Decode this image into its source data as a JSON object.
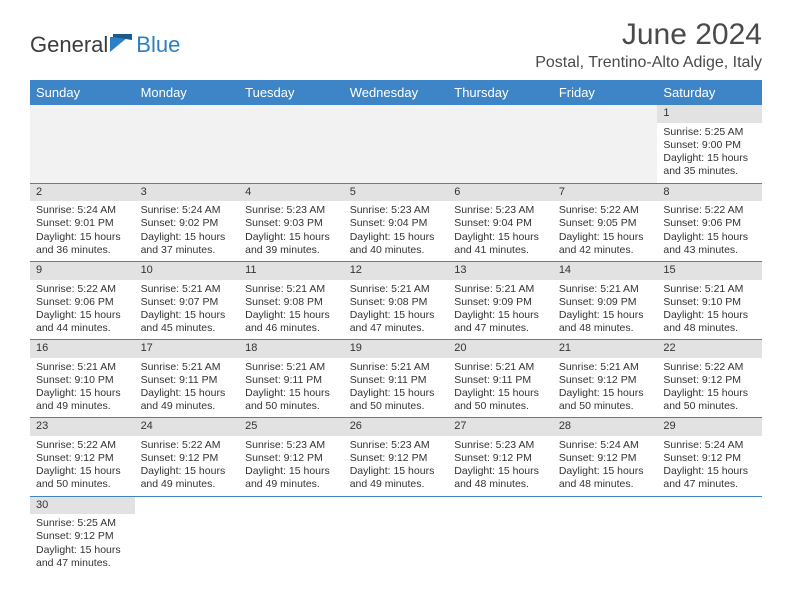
{
  "brand": {
    "part1": "General",
    "part2": "Blue"
  },
  "title": "June 2024",
  "location": "Postal, Trentino-Alto Adige, Italy",
  "columns": [
    "Sunday",
    "Monday",
    "Tuesday",
    "Wednesday",
    "Thursday",
    "Friday",
    "Saturday"
  ],
  "colors": {
    "header_bg": "#3d85c6",
    "header_text": "#ffffff",
    "daynum_bg": "#e2e2e2",
    "border": "#3d85c6",
    "empty_bg": "#f2f2f2",
    "text": "#333333",
    "brand_blue": "#2b7fc4",
    "brand_gray": "#3d3d3d"
  },
  "weeks": [
    [
      null,
      null,
      null,
      null,
      null,
      null,
      {
        "n": "1",
        "sr": "Sunrise: 5:25 AM",
        "ss": "Sunset: 9:00 PM",
        "d1": "Daylight: 15 hours",
        "d2": "and 35 minutes."
      }
    ],
    [
      {
        "n": "2",
        "sr": "Sunrise: 5:24 AM",
        "ss": "Sunset: 9:01 PM",
        "d1": "Daylight: 15 hours",
        "d2": "and 36 minutes."
      },
      {
        "n": "3",
        "sr": "Sunrise: 5:24 AM",
        "ss": "Sunset: 9:02 PM",
        "d1": "Daylight: 15 hours",
        "d2": "and 37 minutes."
      },
      {
        "n": "4",
        "sr": "Sunrise: 5:23 AM",
        "ss": "Sunset: 9:03 PM",
        "d1": "Daylight: 15 hours",
        "d2": "and 39 minutes."
      },
      {
        "n": "5",
        "sr": "Sunrise: 5:23 AM",
        "ss": "Sunset: 9:04 PM",
        "d1": "Daylight: 15 hours",
        "d2": "and 40 minutes."
      },
      {
        "n": "6",
        "sr": "Sunrise: 5:23 AM",
        "ss": "Sunset: 9:04 PM",
        "d1": "Daylight: 15 hours",
        "d2": "and 41 minutes."
      },
      {
        "n": "7",
        "sr": "Sunrise: 5:22 AM",
        "ss": "Sunset: 9:05 PM",
        "d1": "Daylight: 15 hours",
        "d2": "and 42 minutes."
      },
      {
        "n": "8",
        "sr": "Sunrise: 5:22 AM",
        "ss": "Sunset: 9:06 PM",
        "d1": "Daylight: 15 hours",
        "d2": "and 43 minutes."
      }
    ],
    [
      {
        "n": "9",
        "sr": "Sunrise: 5:22 AM",
        "ss": "Sunset: 9:06 PM",
        "d1": "Daylight: 15 hours",
        "d2": "and 44 minutes."
      },
      {
        "n": "10",
        "sr": "Sunrise: 5:21 AM",
        "ss": "Sunset: 9:07 PM",
        "d1": "Daylight: 15 hours",
        "d2": "and 45 minutes."
      },
      {
        "n": "11",
        "sr": "Sunrise: 5:21 AM",
        "ss": "Sunset: 9:08 PM",
        "d1": "Daylight: 15 hours",
        "d2": "and 46 minutes."
      },
      {
        "n": "12",
        "sr": "Sunrise: 5:21 AM",
        "ss": "Sunset: 9:08 PM",
        "d1": "Daylight: 15 hours",
        "d2": "and 47 minutes."
      },
      {
        "n": "13",
        "sr": "Sunrise: 5:21 AM",
        "ss": "Sunset: 9:09 PM",
        "d1": "Daylight: 15 hours",
        "d2": "and 47 minutes."
      },
      {
        "n": "14",
        "sr": "Sunrise: 5:21 AM",
        "ss": "Sunset: 9:09 PM",
        "d1": "Daylight: 15 hours",
        "d2": "and 48 minutes."
      },
      {
        "n": "15",
        "sr": "Sunrise: 5:21 AM",
        "ss": "Sunset: 9:10 PM",
        "d1": "Daylight: 15 hours",
        "d2": "and 48 minutes."
      }
    ],
    [
      {
        "n": "16",
        "sr": "Sunrise: 5:21 AM",
        "ss": "Sunset: 9:10 PM",
        "d1": "Daylight: 15 hours",
        "d2": "and 49 minutes."
      },
      {
        "n": "17",
        "sr": "Sunrise: 5:21 AM",
        "ss": "Sunset: 9:11 PM",
        "d1": "Daylight: 15 hours",
        "d2": "and 49 minutes."
      },
      {
        "n": "18",
        "sr": "Sunrise: 5:21 AM",
        "ss": "Sunset: 9:11 PM",
        "d1": "Daylight: 15 hours",
        "d2": "and 50 minutes."
      },
      {
        "n": "19",
        "sr": "Sunrise: 5:21 AM",
        "ss": "Sunset: 9:11 PM",
        "d1": "Daylight: 15 hours",
        "d2": "and 50 minutes."
      },
      {
        "n": "20",
        "sr": "Sunrise: 5:21 AM",
        "ss": "Sunset: 9:11 PM",
        "d1": "Daylight: 15 hours",
        "d2": "and 50 minutes."
      },
      {
        "n": "21",
        "sr": "Sunrise: 5:21 AM",
        "ss": "Sunset: 9:12 PM",
        "d1": "Daylight: 15 hours",
        "d2": "and 50 minutes."
      },
      {
        "n": "22",
        "sr": "Sunrise: 5:22 AM",
        "ss": "Sunset: 9:12 PM",
        "d1": "Daylight: 15 hours",
        "d2": "and 50 minutes."
      }
    ],
    [
      {
        "n": "23",
        "sr": "Sunrise: 5:22 AM",
        "ss": "Sunset: 9:12 PM",
        "d1": "Daylight: 15 hours",
        "d2": "and 50 minutes."
      },
      {
        "n": "24",
        "sr": "Sunrise: 5:22 AM",
        "ss": "Sunset: 9:12 PM",
        "d1": "Daylight: 15 hours",
        "d2": "and 49 minutes."
      },
      {
        "n": "25",
        "sr": "Sunrise: 5:23 AM",
        "ss": "Sunset: 9:12 PM",
        "d1": "Daylight: 15 hours",
        "d2": "and 49 minutes."
      },
      {
        "n": "26",
        "sr": "Sunrise: 5:23 AM",
        "ss": "Sunset: 9:12 PM",
        "d1": "Daylight: 15 hours",
        "d2": "and 49 minutes."
      },
      {
        "n": "27",
        "sr": "Sunrise: 5:23 AM",
        "ss": "Sunset: 9:12 PM",
        "d1": "Daylight: 15 hours",
        "d2": "and 48 minutes."
      },
      {
        "n": "28",
        "sr": "Sunrise: 5:24 AM",
        "ss": "Sunset: 9:12 PM",
        "d1": "Daylight: 15 hours",
        "d2": "and 48 minutes."
      },
      {
        "n": "29",
        "sr": "Sunrise: 5:24 AM",
        "ss": "Sunset: 9:12 PM",
        "d1": "Daylight: 15 hours",
        "d2": "and 47 minutes."
      }
    ],
    [
      {
        "n": "30",
        "sr": "Sunrise: 5:25 AM",
        "ss": "Sunset: 9:12 PM",
        "d1": "Daylight: 15 hours",
        "d2": "and 47 minutes."
      },
      null,
      null,
      null,
      null,
      null,
      null
    ]
  ]
}
